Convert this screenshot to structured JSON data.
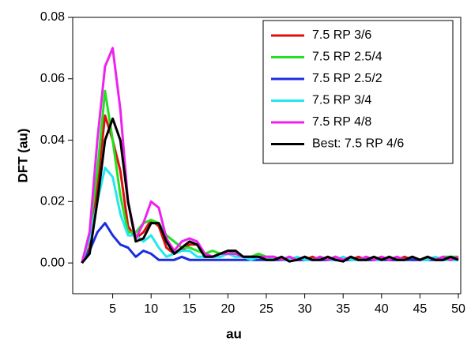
{
  "chart_data": {
    "type": "line",
    "y_label": "DFT (au)",
    "x_label": "au",
    "x": [
      1,
      2,
      3,
      4,
      5,
      6,
      7,
      8,
      9,
      10,
      11,
      12,
      13,
      14,
      15,
      16,
      17,
      18,
      19,
      20,
      21,
      22,
      23,
      24,
      25,
      26,
      27,
      28,
      29,
      30,
      31,
      32,
      33,
      34,
      35,
      36,
      37,
      38,
      39,
      40,
      41,
      42,
      43,
      44,
      45,
      46,
      47,
      48,
      49,
      50
    ],
    "xlim": [
      0,
      50
    ],
    "xticks": [
      5,
      10,
      15,
      20,
      25,
      30,
      35,
      40,
      45,
      50
    ],
    "ylim": [
      -0.01,
      0.08
    ],
    "yticks": [
      {
        "value": 0,
        "label": "0.00"
      },
      0.02,
      0.04,
      0.06,
      0.08
    ],
    "legend": "upper right",
    "series": [
      {
        "name": "7.5 RP 3/6",
        "color": "#e01010",
        "values": [
          0,
          0.005,
          0.025,
          0.048,
          0.04,
          0.03,
          0.012,
          0.008,
          0.01,
          0.014,
          0.012,
          0.005,
          0.003,
          0.004,
          0.006,
          0.006,
          0.003,
          0.002,
          0.003,
          0.003,
          0.003,
          0.002,
          0.002,
          0.002,
          0.001,
          0.002,
          0.001,
          0.002,
          0.001,
          0.001,
          0.002,
          0.001,
          0.001,
          0.002,
          0.001,
          0.001,
          0.002,
          0.001,
          0.001,
          0.002,
          0.001,
          0.001,
          0.002,
          0.001,
          0.001,
          0.002,
          0.001,
          0.001,
          0.002,
          0.001
        ]
      },
      {
        "name": "7.5 RP 2.5/4",
        "color": "#22e022",
        "values": [
          0,
          0.01,
          0.03,
          0.056,
          0.04,
          0.022,
          0.01,
          0.01,
          0.013,
          0.014,
          0.013,
          0.009,
          0.007,
          0.005,
          0.005,
          0.004,
          0.003,
          0.004,
          0.003,
          0.004,
          0.003,
          0.002,
          0.002,
          0.003,
          0.002,
          0.002,
          0.001,
          0.002,
          0.001,
          0.002,
          0.001,
          0.002,
          0.001,
          0.002,
          0.001,
          0.002,
          0.001,
          0.002,
          0.001,
          0.002,
          0.001,
          0.002,
          0.001,
          0.002,
          0.001,
          0.002,
          0.001,
          0.002,
          0.002,
          0.002
        ]
      },
      {
        "name": "7.5 RP 2.5/2",
        "color": "#1a2ee0",
        "values": [
          0,
          0.004,
          0.01,
          0.013,
          0.009,
          0.006,
          0.005,
          0.002,
          0.004,
          0.003,
          0.001,
          0.001,
          0.001,
          0.002,
          0.001,
          0.001,
          0.001,
          0.001,
          0.001,
          0.001,
          0.001,
          0.001,
          0.001,
          0.001,
          0.001,
          0.001,
          0.001,
          0.001,
          0.001,
          0.001,
          0.001,
          0.001,
          0.001,
          0.001,
          0.001,
          0.001,
          0.001,
          0.001,
          0.001,
          0.001,
          0.001,
          0.001,
          0.001,
          0.001,
          0.001,
          0.001,
          0.001,
          0.001,
          0.001,
          0.001
        ]
      },
      {
        "name": "7.5 RP 3/4",
        "color": "#22e8ee",
        "values": [
          0,
          0.008,
          0.02,
          0.031,
          0.028,
          0.016,
          0.009,
          0.009,
          0.007,
          0.009,
          0.005,
          0.002,
          0.003,
          0.004,
          0.004,
          0.002,
          0.002,
          0.002,
          0.002,
          0.003,
          0.002,
          0.002,
          0.001,
          0.002,
          0.001,
          0.002,
          0.001,
          0.001,
          0.002,
          0.001,
          0.001,
          0.002,
          0.001,
          0.001,
          0.002,
          0.001,
          0.001,
          0.002,
          0.001,
          0.001,
          0.002,
          0.001,
          0.001,
          0.002,
          0.001,
          0.001,
          0.002,
          0.001,
          0.001,
          0.001
        ]
      },
      {
        "name": "7.5 RP 4/8",
        "color": "#ee22ee",
        "values": [
          0,
          0.01,
          0.04,
          0.064,
          0.07,
          0.05,
          0.02,
          0.008,
          0.013,
          0.02,
          0.018,
          0.008,
          0.004,
          0.007,
          0.008,
          0.007,
          0.003,
          0.002,
          0.003,
          0.003,
          0.003,
          0.002,
          0.002,
          0.002,
          0.002,
          0.002,
          0.001,
          0.002,
          0.001,
          0.002,
          0.001,
          0.002,
          0.001,
          0.002,
          0.001,
          0.002,
          0.001,
          0.002,
          0.001,
          0.002,
          0.001,
          0.002,
          0.001,
          0.002,
          0.001,
          0.002,
          0.001,
          0.002,
          0.001,
          0.002
        ]
      },
      {
        "name": "Best: 7.5 RP 4/6",
        "color": "#000000",
        "values": [
          0,
          0.003,
          0.02,
          0.04,
          0.047,
          0.04,
          0.02,
          0.007,
          0.008,
          0.013,
          0.013,
          0.007,
          0.003,
          0.005,
          0.007,
          0.006,
          0.002,
          0.002,
          0.003,
          0.004,
          0.004,
          0.002,
          0.002,
          0.002,
          0.001,
          0.001,
          0.002,
          0.0005,
          0.001,
          0.002,
          0.001,
          0.001,
          0.002,
          0.001,
          0.0005,
          0.002,
          0.001,
          0.001,
          0.002,
          0.001,
          0.002,
          0.001,
          0.001,
          0.002,
          0.001,
          0.002,
          0.001,
          0.001,
          0.002,
          0.001
        ]
      }
    ]
  }
}
